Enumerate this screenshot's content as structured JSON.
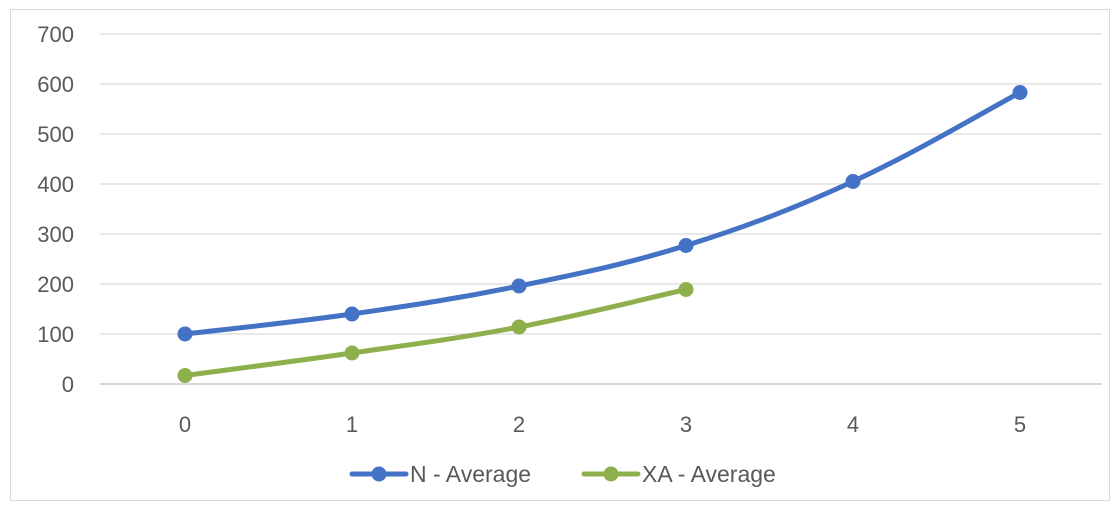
{
  "chart_data": {
    "type": "line",
    "title": "",
    "xlabel": "",
    "ylabel": "",
    "x": [
      0,
      1,
      2,
      3,
      4,
      5
    ],
    "x_tick_labels": [
      "0",
      "1",
      "2",
      "3",
      "4",
      "5"
    ],
    "y_tick_labels": [
      "0",
      "100",
      "200",
      "300",
      "400",
      "500",
      "600",
      "700"
    ],
    "ylim": [
      0,
      700
    ],
    "grid": true,
    "legend_position": "bottom",
    "series": [
      {
        "name": "N - Average",
        "color": "#4472c4",
        "x": [
          0,
          1,
          2,
          3,
          4,
          5
        ],
        "values": [
          100,
          140,
          196,
          277,
          405,
          583
        ]
      },
      {
        "name": "XA - Average",
        "color": "#8db04d",
        "x": [
          0,
          1,
          2,
          3
        ],
        "values": [
          17,
          62,
          114,
          189
        ]
      }
    ]
  }
}
